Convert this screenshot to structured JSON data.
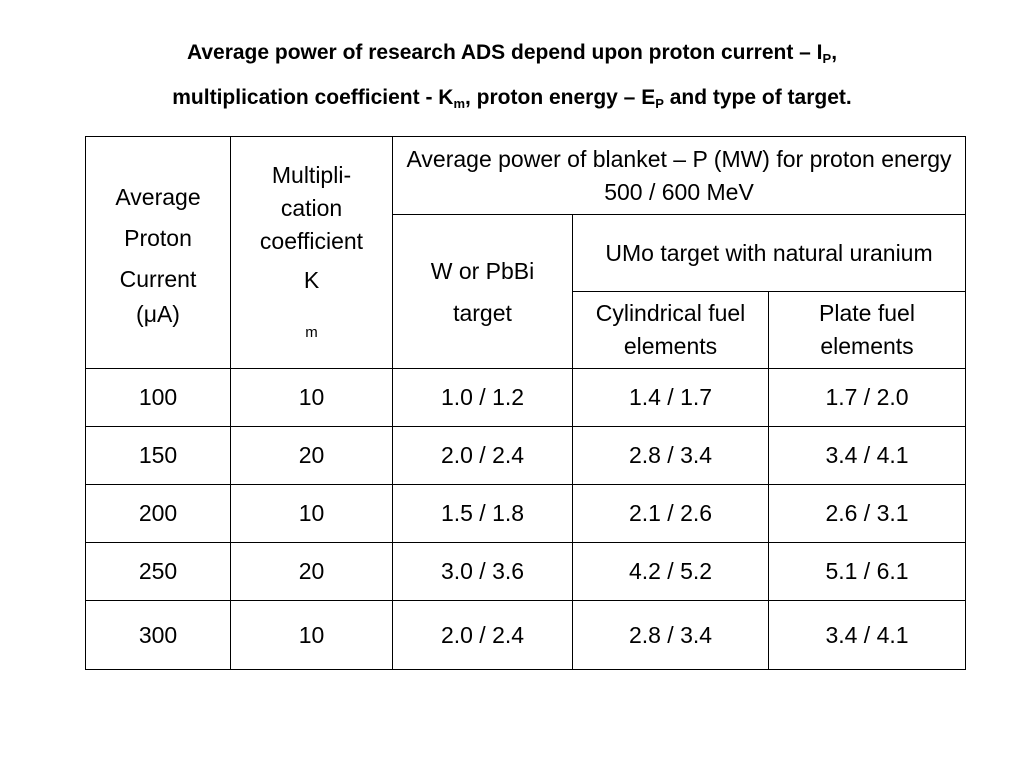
{
  "title": {
    "line1_text": "Average power of research ADS depend upon proton current – I",
    "line1_sub": "P",
    "line1_end": ",",
    "line2_a": "multiplication coefficient - K",
    "line2_sub1": "m",
    "line2_b": ", proton energy – E",
    "line2_sub2": "P",
    "line2_c": " and type of target."
  },
  "table": {
    "header": {
      "current": [
        "Average",
        "Proton",
        "Current",
        "(μA)"
      ],
      "coefficient": [
        "Multipli-",
        "cation",
        "coefficient"
      ],
      "coefficient_symbol": "K",
      "coefficient_sub": "m",
      "power": "Average power of blanket – P (MW) for proton energy  500 / 600 MeV",
      "w_target": [
        "W or PbBi",
        "target"
      ],
      "umo_target": "UMo target with natural uranium",
      "cylindrical": "Cylindrical fuel elements",
      "plate": "Plate fuel elements"
    },
    "rows": [
      {
        "current": "100",
        "km": "10",
        "w": "1.0 / 1.2",
        "cyl": "1.4 / 1.7",
        "plate": "1.7 / 2.0"
      },
      {
        "current": "150",
        "km": "20",
        "w": "2.0 / 2.4",
        "cyl": "2.8 / 3.4",
        "plate": "3.4 / 4.1"
      },
      {
        "current": "200",
        "km": "10",
        "w": "1.5 / 1.8",
        "cyl": "2.1 / 2.6",
        "plate": "2.6 / 3.1"
      },
      {
        "current": "250",
        "km": "20",
        "w": "3.0 / 3.6",
        "cyl": "4.2 / 5.2",
        "plate": "5.1 / 6.1"
      },
      {
        "current": "300",
        "km": "10",
        "w": "2.0 / 2.4",
        "cyl": "2.8 / 3.4",
        "plate": "3.4 / 4.1"
      }
    ]
  }
}
